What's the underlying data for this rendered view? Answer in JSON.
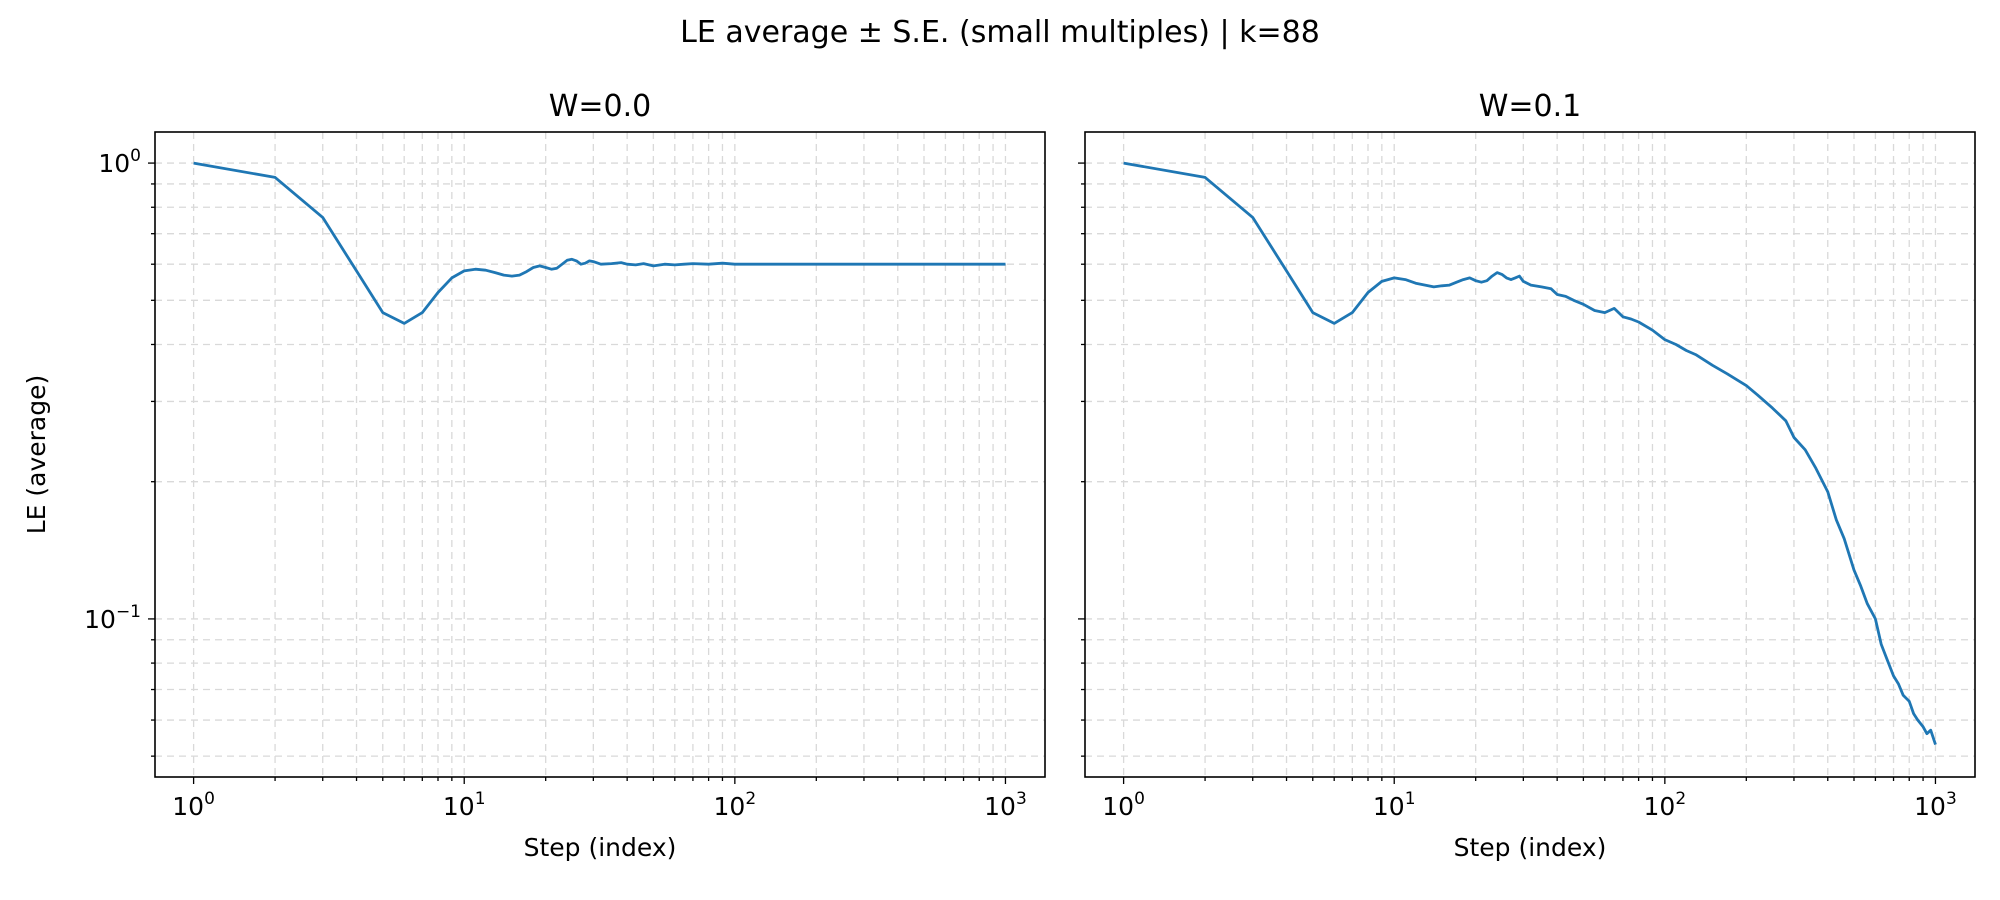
{
  "figure": {
    "suptitle": "LE average ± S.E. (small multiples) | k=88"
  },
  "chart_data": [
    {
      "type": "line",
      "title": "W=0.0",
      "xlabel": "Step (index)",
      "ylabel": "LE (average)",
      "xscale": "log",
      "yscale": "log",
      "xlim": [
        0.72,
        1400
      ],
      "ylim": [
        0.045,
        1.17
      ],
      "grid": true,
      "xtick_labels": [
        {
          "base": "10",
          "exp": "0"
        },
        {
          "base": "10",
          "exp": "1"
        },
        {
          "base": "10",
          "exp": "2"
        },
        {
          "base": "10",
          "exp": "3"
        }
      ],
      "ytick_labels": [
        {
          "base": "10",
          "exp": "0"
        },
        {
          "base": "10",
          "exp": "−1"
        }
      ],
      "color": "#1f77b4",
      "series": [
        {
          "x": [
            1,
            2,
            3,
            4,
            5,
            6,
            7,
            8,
            9,
            10,
            11,
            12,
            13,
            14,
            15,
            16,
            17,
            18,
            19,
            20,
            21,
            22,
            23,
            24,
            25,
            26,
            27,
            28,
            29,
            30,
            32,
            35,
            38,
            40,
            43,
            46,
            50,
            55,
            60,
            65,
            70,
            80,
            90,
            100,
            120,
            150,
            200,
            300,
            400,
            500,
            700,
            1000
          ],
          "y": [
            1.0,
            0.93,
            0.76,
            0.58,
            0.47,
            0.445,
            0.47,
            0.52,
            0.56,
            0.58,
            0.585,
            0.582,
            0.575,
            0.568,
            0.565,
            0.568,
            0.578,
            0.59,
            0.595,
            0.59,
            0.585,
            0.588,
            0.6,
            0.612,
            0.615,
            0.61,
            0.6,
            0.603,
            0.61,
            0.608,
            0.6,
            0.602,
            0.605,
            0.6,
            0.598,
            0.602,
            0.595,
            0.6,
            0.598,
            0.6,
            0.602,
            0.6,
            0.603,
            0.6,
            0.6,
            0.6,
            0.6,
            0.6,
            0.6,
            0.6,
            0.6,
            0.6
          ]
        }
      ]
    },
    {
      "type": "line",
      "title": "W=0.1",
      "xlabel": "Step (index)",
      "ylabel": "",
      "xscale": "log",
      "yscale": "log",
      "xlim": [
        0.72,
        1400
      ],
      "ylim": [
        0.045,
        1.17
      ],
      "grid": true,
      "xtick_labels": [
        {
          "base": "10",
          "exp": "0"
        },
        {
          "base": "10",
          "exp": "1"
        },
        {
          "base": "10",
          "exp": "2"
        },
        {
          "base": "10",
          "exp": "3"
        }
      ],
      "ytick_labels": [],
      "color": "#1f77b4",
      "series": [
        {
          "x": [
            1,
            2,
            3,
            4,
            5,
            6,
            7,
            8,
            9,
            10,
            11,
            12,
            13,
            14,
            15,
            16,
            17,
            18,
            19,
            20,
            21,
            22,
            23,
            24,
            25,
            26,
            27,
            28,
            29,
            30,
            32,
            35,
            38,
            40,
            43,
            46,
            50,
            55,
            60,
            65,
            70,
            75,
            80,
            90,
            100,
            110,
            120,
            130,
            150,
            170,
            200,
            220,
            250,
            280,
            300,
            330,
            360,
            400,
            430,
            460,
            500,
            530,
            560,
            600,
            630,
            660,
            700,
            730,
            760,
            800,
            830,
            860,
            900,
            930,
            960,
            1000
          ],
          "y": [
            1.0,
            0.93,
            0.76,
            0.58,
            0.47,
            0.445,
            0.47,
            0.52,
            0.55,
            0.56,
            0.555,
            0.545,
            0.54,
            0.535,
            0.538,
            0.54,
            0.548,
            0.555,
            0.56,
            0.552,
            0.548,
            0.552,
            0.565,
            0.575,
            0.57,
            0.56,
            0.555,
            0.56,
            0.565,
            0.55,
            0.54,
            0.535,
            0.53,
            0.515,
            0.51,
            0.5,
            0.49,
            0.475,
            0.47,
            0.48,
            0.46,
            0.455,
            0.448,
            0.43,
            0.41,
            0.4,
            0.388,
            0.38,
            0.36,
            0.345,
            0.325,
            0.31,
            0.29,
            0.272,
            0.25,
            0.235,
            0.215,
            0.19,
            0.165,
            0.15,
            0.128,
            0.118,
            0.108,
            0.1,
            0.088,
            0.082,
            0.075,
            0.072,
            0.068,
            0.066,
            0.062,
            0.06,
            0.058,
            0.056,
            0.057,
            0.053
          ]
        }
      ]
    }
  ]
}
